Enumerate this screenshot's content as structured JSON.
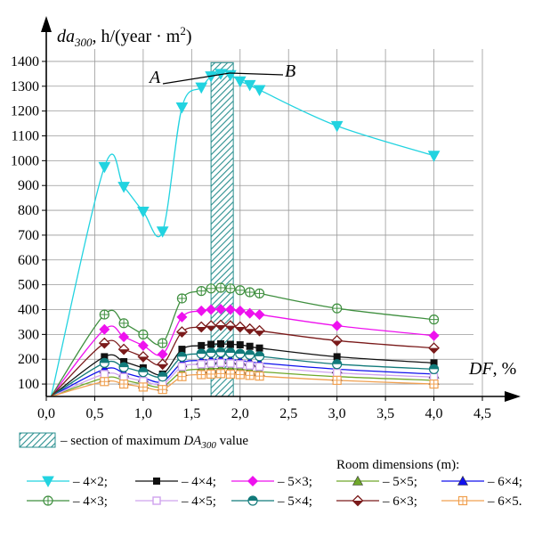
{
  "chart_data": {
    "type": "line",
    "ylabel": "da300, h/(year·m2)",
    "ylabel_parts": {
      "main": "da",
      "sub": "300",
      "unit_pre": ", h/(year · m",
      "sup": "2",
      "unit_post": ")"
    },
    "xlabel": "DF, %",
    "xlabel_parts": {
      "var": "DF",
      "rest": ", %"
    },
    "xlim": [
      0,
      4.5
    ],
    "ylim": [
      50,
      1450
    ],
    "x_ticks": [
      "0,0",
      "0,5",
      "1,0",
      "1,5",
      "2,0",
      "2,5",
      "3,0",
      "3,5",
      "4,0",
      "4,5"
    ],
    "x_tick_values": [
      0,
      0.5,
      1,
      1.5,
      2,
      2.5,
      3,
      3.5,
      4,
      4.5
    ],
    "y_ticks": [
      "100",
      "200",
      "300",
      "400",
      "500",
      "600",
      "700",
      "800",
      "900",
      "1000",
      "1100",
      "1200",
      "1300",
      "1400"
    ],
    "y_tick_values": [
      100,
      200,
      300,
      400,
      500,
      600,
      700,
      800,
      900,
      1000,
      1100,
      1200,
      1300,
      1400
    ],
    "grid": true,
    "band": {
      "x_start": 1.7,
      "x_end": 1.93,
      "legend_text": "– section of maximum DA300 value",
      "legend_text_plain": "– section of maximum ",
      "legend_var": "DA",
      "legend_sub": "300",
      "legend_tail": " value"
    },
    "annotations": {
      "A": "A",
      "B": "B"
    },
    "legend_title": "Room dimensions (m):",
    "series": [
      {
        "name": "– 4×2;",
        "color": "#22d3e0",
        "marker": "triangle-down",
        "x": [
          0.6,
          0.8,
          1.0,
          1.2,
          1.4,
          1.6,
          1.7,
          1.8,
          1.9,
          2.0,
          2.1,
          2.2,
          3.0,
          4.0
        ],
        "y": [
          975,
          895,
          795,
          715,
          1215,
          1295,
          1340,
          1350,
          1345,
          1320,
          1305,
          1285,
          1140,
          1020
        ]
      },
      {
        "name": "– 4×4;",
        "color": "#111111",
        "marker": "square",
        "x": [
          0.6,
          0.8,
          1.0,
          1.2,
          1.4,
          1.6,
          1.7,
          1.8,
          1.9,
          2.0,
          2.1,
          2.2,
          3.0,
          4.0
        ],
        "y": [
          210,
          190,
          165,
          140,
          240,
          255,
          260,
          262,
          260,
          258,
          252,
          245,
          210,
          185
        ]
      },
      {
        "name": "– 5×3;",
        "color": "#ee11ee",
        "marker": "diamond",
        "x": [
          0.6,
          0.8,
          1.0,
          1.2,
          1.4,
          1.6,
          1.7,
          1.8,
          1.9,
          2.0,
          2.1,
          2.2,
          3.0,
          4.0
        ],
        "y": [
          320,
          290,
          255,
          220,
          370,
          395,
          400,
          402,
          400,
          395,
          385,
          380,
          335,
          295
        ]
      },
      {
        "name": "– 5×5;",
        "color": "#6fa82a",
        "marker": "triangle-up",
        "x": [
          0.6,
          0.8,
          1.0,
          1.2,
          1.4,
          1.6,
          1.7,
          1.8,
          1.9,
          2.0,
          2.1,
          2.2,
          3.0,
          4.0
        ],
        "y": [
          125,
          115,
          100,
          90,
          150,
          160,
          162,
          163,
          162,
          160,
          155,
          150,
          130,
          115
        ]
      },
      {
        "name": "– 6×4;",
        "color": "#1111ee",
        "marker": "triangle-up",
        "x": [
          0.6,
          0.8,
          1.0,
          1.2,
          1.4,
          1.6,
          1.7,
          1.8,
          1.9,
          2.0,
          2.1,
          2.2,
          3.0,
          4.0
        ],
        "y": [
          160,
          145,
          125,
          110,
          185,
          195,
          198,
          200,
          198,
          195,
          190,
          185,
          160,
          140
        ]
      },
      {
        "name": "– 4×3;",
        "color": "#3f8f3f",
        "marker": "circle-plus",
        "x": [
          0.6,
          0.8,
          1.0,
          1.2,
          1.4,
          1.6,
          1.7,
          1.8,
          1.9,
          2.0,
          2.1,
          2.2,
          3.0,
          4.0
        ],
        "y": [
          380,
          345,
          300,
          265,
          445,
          475,
          485,
          488,
          485,
          478,
          470,
          465,
          405,
          360
        ]
      },
      {
        "name": "– 4×5;",
        "color": "#cfa3ee",
        "marker": "square-open",
        "x": [
          0.6,
          0.8,
          1.0,
          1.2,
          1.4,
          1.6,
          1.7,
          1.8,
          1.9,
          2.0,
          2.1,
          2.2,
          3.0,
          4.0
        ],
        "y": [
          140,
          128,
          112,
          100,
          170,
          180,
          183,
          185,
          183,
          180,
          175,
          170,
          145,
          128
        ]
      },
      {
        "name": "– 5×4;",
        "color": "#117a7a",
        "marker": "half-circle",
        "x": [
          0.6,
          0.8,
          1.0,
          1.2,
          1.4,
          1.6,
          1.7,
          1.8,
          1.9,
          2.0,
          2.1,
          2.2,
          3.0,
          4.0
        ],
        "y": [
          185,
          168,
          148,
          130,
          210,
          222,
          226,
          228,
          226,
          222,
          218,
          212,
          180,
          160
        ]
      },
      {
        "name": "– 6×3;",
        "color": "#7a1a1a",
        "marker": "diamond-open",
        "x": [
          0.6,
          0.8,
          1.0,
          1.2,
          1.4,
          1.6,
          1.7,
          1.8,
          1.9,
          2.0,
          2.1,
          2.2,
          3.0,
          4.0
        ],
        "y": [
          265,
          240,
          210,
          180,
          310,
          330,
          335,
          337,
          335,
          330,
          322,
          315,
          275,
          245
        ]
      },
      {
        "name": "– 6×5.",
        "color": "#f0a050",
        "marker": "square-plus",
        "x": [
          0.6,
          0.8,
          1.0,
          1.2,
          1.4,
          1.6,
          1.7,
          1.8,
          1.9,
          2.0,
          2.1,
          2.2,
          3.0,
          4.0
        ],
        "y": [
          110,
          100,
          88,
          78,
          130,
          138,
          140,
          142,
          140,
          138,
          135,
          132,
          115,
          100
        ]
      }
    ]
  }
}
